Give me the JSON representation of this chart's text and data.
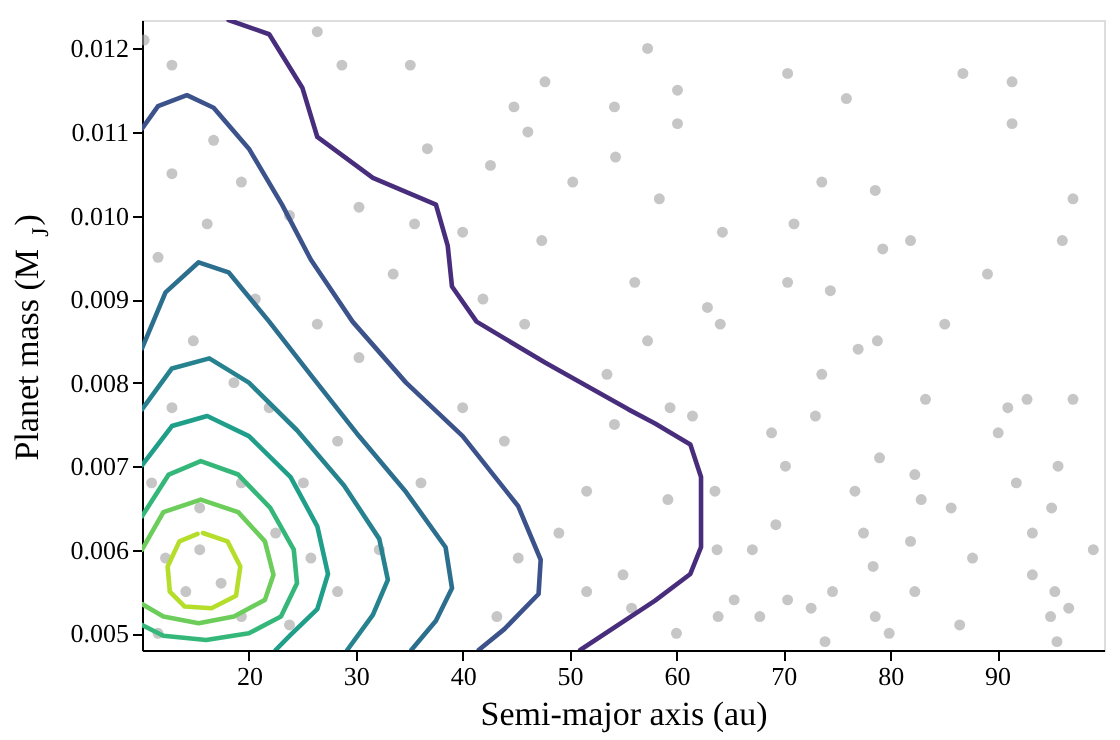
{
  "chart_data": {
    "type": "scatter",
    "xlabel": "Semi-major axis (au)",
    "ylabel": "Planet mass (M$_{J}$)",
    "xlim": [
      10,
      100
    ],
    "ylim": [
      0.0048,
      0.01234
    ],
    "xticks": [
      20,
      30,
      40,
      50,
      60,
      70,
      80,
      90
    ],
    "yticks": [
      {
        "value": 0.005,
        "label": "0.005"
      },
      {
        "value": 0.006,
        "label": "0.006"
      },
      {
        "value": 0.007,
        "label": "0.007"
      },
      {
        "value": 0.008,
        "label": "0.008"
      },
      {
        "value": 0.009,
        "label": "0.009"
      },
      {
        "value": 0.01,
        "label": "0.010"
      },
      {
        "value": 0.011,
        "label": "0.011"
      },
      {
        "value": 0.012,
        "label": "0.012"
      }
    ],
    "grid": false,
    "series": [
      {
        "type": "scatter",
        "marker": "circle",
        "color": "#a0a0a0",
        "x": [
          57.3,
          70.4,
          86.8,
          91.4,
          60.1,
          54.2,
          75.9,
          60.1,
          91.4,
          54.3,
          73.6,
          78.6,
          58.4,
          97.1,
          71.0,
          64.3,
          81.9,
          96.1,
          79.3,
          89.1,
          70.4,
          74.4,
          56.1,
          62.9,
          85.1,
          78.8,
          77.0,
          64.1,
          57.3,
          73.6,
          83.3,
          92.8,
          91.0,
          97.1,
          73.0,
          68.9,
          90.1,
          79.0,
          70.2,
          82.3,
          95.7,
          91.8,
          63.6,
          76.7,
          82.9,
          85.7,
          95.1,
          69.3,
          77.5,
          93.3,
          81.9,
          67.1,
          87.7,
          99.0,
          78.4,
          93.3,
          74.6,
          82.3,
          95.4,
          70.4,
          65.4,
          72.6,
          96.7,
          78.6,
          67.8,
          86.5,
          95.0,
          79.9,
          73.9,
          95.6,
          63.8,
          59.4,
          61.5,
          54.2,
          59.2,
          55.0,
          55.8,
          63.9,
          60.0,
          26.4,
          35.1,
          28.7,
          47.7,
          44.8,
          46.1,
          36.7,
          42.6,
          50.3,
          30.3,
          35.5,
          40.0,
          47.4,
          33.5,
          41.9,
          26.4,
          45.8,
          53.5,
          40.0,
          43.9,
          51.6,
          49.0,
          45.2,
          51.6,
          43.2,
          28.3,
          32.2,
          36.1,
          30.3,
          21.9,
          25.1,
          28.3,
          20.6,
          16.1,
          12.8,
          16.7,
          12.8,
          10.2,
          11.5,
          14.8,
          18.6,
          12.8,
          22.5,
          25.8,
          15.4,
          17.4,
          14.1,
          12.2,
          19.3,
          23.8,
          11.5,
          15.4,
          19.3,
          10.9,
          23.8,
          19.3
        ],
        "values": [
          0.012,
          0.0117,
          0.0117,
          0.0116,
          0.0115,
          0.0113,
          0.0114,
          0.0111,
          0.0111,
          0.0107,
          0.0104,
          0.0103,
          0.0102,
          0.0102,
          0.0099,
          0.0098,
          0.0097,
          0.0097,
          0.0096,
          0.0093,
          0.0092,
          0.0091,
          0.0092,
          0.0089,
          0.0087,
          0.0085,
          0.0084,
          0.0087,
          0.0085,
          0.0081,
          0.0078,
          0.0078,
          0.0077,
          0.0078,
          0.0076,
          0.0074,
          0.0074,
          0.0071,
          0.007,
          0.0069,
          0.007,
          0.0068,
          0.0067,
          0.0067,
          0.0066,
          0.0065,
          0.0065,
          0.0063,
          0.0062,
          0.0062,
          0.0061,
          0.006,
          0.0059,
          0.006,
          0.0058,
          0.0057,
          0.0055,
          0.0055,
          0.0055,
          0.0054,
          0.0054,
          0.0053,
          0.0053,
          0.0052,
          0.0052,
          0.0051,
          0.0052,
          0.005,
          0.0049,
          0.0049,
          0.006,
          0.0077,
          0.0076,
          0.0075,
          0.0066,
          0.0057,
          0.0053,
          0.0052,
          0.005,
          0.0122,
          0.0118,
          0.0118,
          0.0116,
          0.0113,
          0.011,
          0.0108,
          0.0106,
          0.0104,
          0.0101,
          0.0099,
          0.0098,
          0.0097,
          0.0093,
          0.009,
          0.0087,
          0.0087,
          0.0081,
          0.0077,
          0.0073,
          0.0067,
          0.0062,
          0.0059,
          0.0055,
          0.0052,
          0.0055,
          0.006,
          0.0068,
          0.0083,
          0.0077,
          0.0068,
          0.0073,
          0.009,
          0.0099,
          0.0105,
          0.0109,
          0.0118,
          0.0121,
          0.0095,
          0.0085,
          0.008,
          0.0077,
          0.0062,
          0.0059,
          0.006,
          0.0056,
          0.0055,
          0.0059,
          0.0052,
          0.0051,
          0.005,
          0.0065,
          0.0068,
          0.0068,
          0.01,
          0.0104
        ]
      },
      {
        "type": "line",
        "color": "#472d7b",
        "x": [
          18.1,
          21.9,
          25.0,
          26.4,
          31.6,
          37.5,
          38.6,
          39.0,
          41.3,
          47.7,
          55.5,
          58.0,
          61.3,
          62.3,
          62.3,
          61.3,
          58.0,
          51.0
        ],
        "values": [
          0.01234,
          0.01217,
          0.01153,
          0.01094,
          0.01045,
          0.01013,
          0.00964,
          0.00915,
          0.00873,
          0.00824,
          0.00768,
          0.00751,
          0.00726,
          0.00687,
          0.00603,
          0.00571,
          0.00539,
          0.0048
        ]
      },
      {
        "type": "line",
        "color": "#3b528b",
        "x": [
          10,
          11.5,
          14.2,
          16.7,
          20.0,
          23.1,
          25.8,
          29.7,
          34.7,
          40.0,
          45.2,
          47.3,
          47.1,
          43.9,
          41.5
        ],
        "values": [
          0.01104,
          0.01131,
          0.01144,
          0.01129,
          0.0108,
          0.01013,
          0.00947,
          0.00873,
          0.008,
          0.00736,
          0.00652,
          0.00588,
          0.00547,
          0.00505,
          0.0048
        ]
      },
      {
        "type": "line",
        "color": "#2c6e8e",
        "x": [
          10,
          12.2,
          15.3,
          18.1,
          21.9,
          25.8,
          30.3,
          34.7,
          38.4,
          39.0,
          37.5,
          35.2
        ],
        "values": [
          0.00841,
          0.00908,
          0.00944,
          0.00932,
          0.00873,
          0.00809,
          0.00736,
          0.00669,
          0.00603,
          0.00554,
          0.00515,
          0.0048
        ]
      },
      {
        "type": "line",
        "color": "#26828e",
        "x": [
          10,
          12.8,
          16.3,
          20.0,
          24.5,
          28.9,
          32.2,
          33.0,
          31.6,
          29.2
        ],
        "values": [
          0.00768,
          0.00817,
          0.00829,
          0.008,
          0.00743,
          0.00677,
          0.00613,
          0.00564,
          0.00522,
          0.0048
        ]
      },
      {
        "type": "line",
        "color": "#1f9e89",
        "x": [
          10,
          12.8,
          16.1,
          20.0,
          23.9,
          26.4,
          27.4,
          26.4,
          23.9,
          22.5
        ],
        "values": [
          0.00701,
          0.00748,
          0.0076,
          0.00736,
          0.00687,
          0.00628,
          0.00571,
          0.00529,
          0.00498,
          0.0048
        ]
      },
      {
        "type": "line",
        "color": "#35b779",
        "x": [
          10,
          12.5,
          15.5,
          19.0,
          22.0,
          24.2,
          24.5,
          23.0,
          20.0,
          16.0,
          12.0,
          10
        ],
        "values": [
          0.0064,
          0.0069,
          0.00706,
          0.0069,
          0.0065,
          0.006,
          0.0056,
          0.0052,
          0.005,
          0.00492,
          0.00497,
          0.0051
        ]
      },
      {
        "type": "line",
        "color": "#6ccd5a",
        "x": [
          10,
          12.0,
          15.5,
          19.0,
          21.5,
          22.3,
          21.5,
          18.6,
          15.3,
          12.0,
          10
        ],
        "values": [
          0.006,
          0.00645,
          0.0066,
          0.00645,
          0.0061,
          0.0057,
          0.0054,
          0.0052,
          0.00512,
          0.0052,
          0.00535
        ]
      },
      {
        "type": "line",
        "color": "#b5de2b",
        "x": [
          15.7,
          18.0,
          19.2,
          18.8,
          16.5,
          14.0,
          12.6,
          12.4,
          13.5,
          15.2
        ],
        "values": [
          0.0062,
          0.0061,
          0.0058,
          0.00545,
          0.0053,
          0.00532,
          0.0055,
          0.0058,
          0.0061,
          0.00619
        ]
      }
    ]
  }
}
